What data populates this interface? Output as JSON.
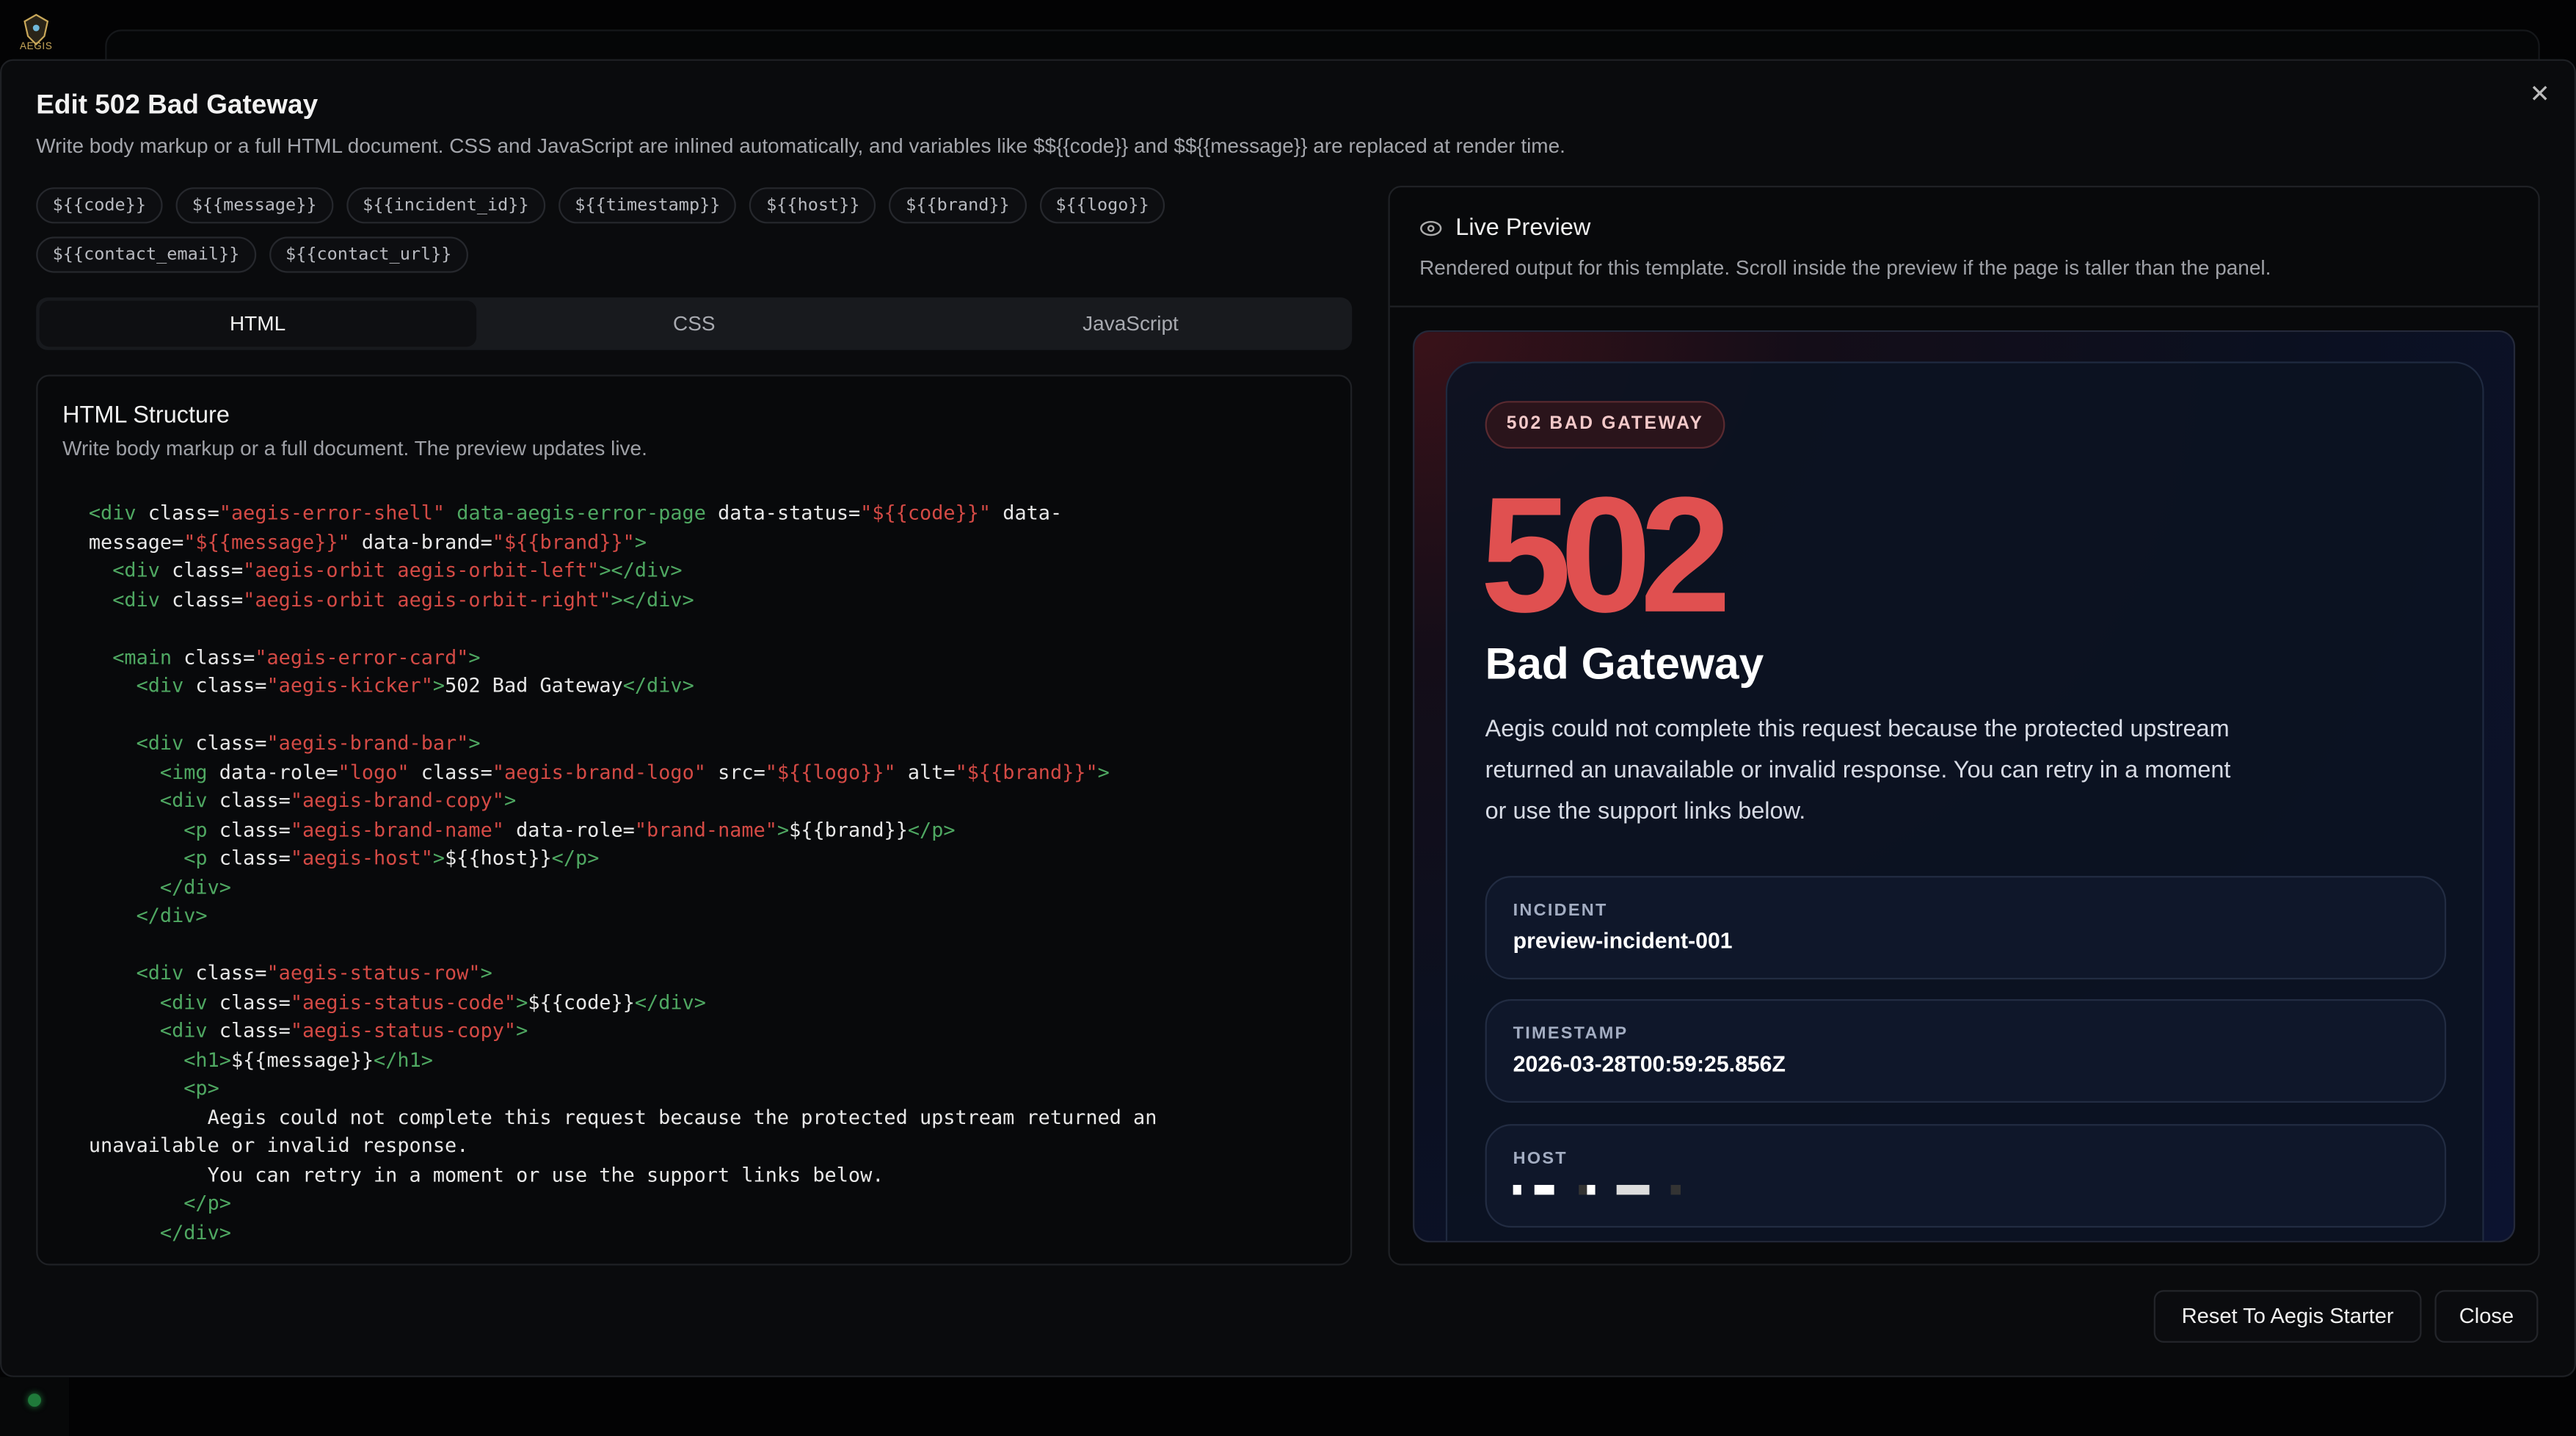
{
  "app": {
    "logo_text": "AEGIS",
    "status_color": "#1f7a3a"
  },
  "modal": {
    "title": "Edit 502 Bad Gateway",
    "subtitle": "Write body markup or a full HTML document. CSS and JavaScript are inlined automatically, and variables like $${{code}} and $${{message}} are replaced at render time.",
    "close_icon": "close-icon",
    "chips": [
      "${{code}}",
      "${{message}}",
      "${{incident_id}}",
      "${{timestamp}}",
      "${{host}}",
      "${{brand}}",
      "${{logo}}",
      "${{contact_email}}",
      "${{contact_url}}"
    ],
    "tabs": [
      {
        "label": "HTML",
        "active": true
      },
      {
        "label": "CSS",
        "active": false
      },
      {
        "label": "JavaScript",
        "active": false
      }
    ],
    "editor": {
      "title": "HTML Structure",
      "subtitle": "Write body markup or a full document. The preview updates live.",
      "lines": [
        [
          [
            "g",
            "<div"
          ],
          [
            "a",
            " class="
          ],
          [
            "s",
            "\"aegis-error-shell\""
          ],
          [
            "g",
            " data-aegis-error-page"
          ],
          [
            "a",
            " data-status="
          ],
          [
            "s",
            "\"${{code}}\""
          ],
          [
            "a",
            " data-"
          ]
        ],
        [
          [
            "a",
            "message="
          ],
          [
            "s",
            "\"${{message}}\""
          ],
          [
            "a",
            " data-brand="
          ],
          [
            "s",
            "\"${{brand}}\""
          ],
          [
            "g",
            ">"
          ]
        ],
        [
          [
            "g",
            "  <div"
          ],
          [
            "a",
            " class="
          ],
          [
            "s",
            "\"aegis-orbit aegis-orbit-left\""
          ],
          [
            "g",
            "></div>"
          ]
        ],
        [
          [
            "g",
            "  <div"
          ],
          [
            "a",
            " class="
          ],
          [
            "s",
            "\"aegis-orbit aegis-orbit-right\""
          ],
          [
            "g",
            "></div>"
          ]
        ],
        [],
        [
          [
            "g",
            "  <main"
          ],
          [
            "a",
            " class="
          ],
          [
            "s",
            "\"aegis-error-card\""
          ],
          [
            "g",
            ">"
          ]
        ],
        [
          [
            "g",
            "    <div"
          ],
          [
            "a",
            " class="
          ],
          [
            "s",
            "\"aegis-kicker\""
          ],
          [
            "g",
            ">"
          ],
          [
            "t",
            "502 Bad Gateway"
          ],
          [
            "g",
            "</div>"
          ]
        ],
        [],
        [
          [
            "g",
            "    <div"
          ],
          [
            "a",
            " class="
          ],
          [
            "s",
            "\"aegis-brand-bar\""
          ],
          [
            "g",
            ">"
          ]
        ],
        [
          [
            "g",
            "      <img"
          ],
          [
            "a",
            " data-role="
          ],
          [
            "s",
            "\"logo\""
          ],
          [
            "a",
            " class="
          ],
          [
            "s",
            "\"aegis-brand-logo\""
          ],
          [
            "a",
            " src="
          ],
          [
            "s",
            "\"${{logo}}\""
          ],
          [
            "a",
            " alt="
          ],
          [
            "s",
            "\"${{brand}}\""
          ],
          [
            "g",
            ">"
          ]
        ],
        [
          [
            "g",
            "      <div"
          ],
          [
            "a",
            " class="
          ],
          [
            "s",
            "\"aegis-brand-copy\""
          ],
          [
            "g",
            ">"
          ]
        ],
        [
          [
            "g",
            "        <p"
          ],
          [
            "a",
            " class="
          ],
          [
            "s",
            "\"aegis-brand-name\""
          ],
          [
            "a",
            " data-role="
          ],
          [
            "s",
            "\"brand-name\""
          ],
          [
            "g",
            ">"
          ],
          [
            "t",
            "${{brand}}"
          ],
          [
            "g",
            "</p>"
          ]
        ],
        [
          [
            "g",
            "        <p"
          ],
          [
            "a",
            " class="
          ],
          [
            "s",
            "\"aegis-host\""
          ],
          [
            "g",
            ">"
          ],
          [
            "t",
            "${{host}}"
          ],
          [
            "g",
            "</p>"
          ]
        ],
        [
          [
            "g",
            "      </div>"
          ]
        ],
        [
          [
            "g",
            "    </div>"
          ]
        ],
        [],
        [
          [
            "g",
            "    <div"
          ],
          [
            "a",
            " class="
          ],
          [
            "s",
            "\"aegis-status-row\""
          ],
          [
            "g",
            ">"
          ]
        ],
        [
          [
            "g",
            "      <div"
          ],
          [
            "a",
            " class="
          ],
          [
            "s",
            "\"aegis-status-code\""
          ],
          [
            "g",
            ">"
          ],
          [
            "t",
            "${{code}}"
          ],
          [
            "g",
            "</div>"
          ]
        ],
        [
          [
            "g",
            "      <div"
          ],
          [
            "a",
            " class="
          ],
          [
            "s",
            "\"aegis-status-copy\""
          ],
          [
            "g",
            ">"
          ]
        ],
        [
          [
            "g",
            "        <h1>"
          ],
          [
            "t",
            "${{message}}"
          ],
          [
            "g",
            "</h1>"
          ]
        ],
        [
          [
            "g",
            "        <p>"
          ]
        ],
        [
          [
            "t",
            "          Aegis could not complete this request because the protected upstream returned an"
          ]
        ],
        [
          [
            "t",
            "unavailable or invalid response."
          ]
        ],
        [
          [
            "t",
            "          You can retry in a moment or use the support links below."
          ]
        ],
        [
          [
            "g",
            "        </p>"
          ]
        ],
        [
          [
            "g",
            "      </div>"
          ]
        ]
      ]
    },
    "preview": {
      "title": "Live Preview",
      "subtitle": "Rendered output for this template. Scroll inside the preview if the page is taller than the panel.",
      "icon": "eye-icon",
      "badge": "502 BAD GATEWAY",
      "code": "502",
      "heading": "Bad Gateway",
      "paragraph": "Aegis could not complete this request because the protected upstream returned an unavailable or invalid response. You can retry in a moment or use the support links below.",
      "accent": "#e05050",
      "fields": [
        {
          "label": "INCIDENT",
          "value": "preview-incident-001"
        },
        {
          "label": "TIMESTAMP",
          "value": "2026-03-28T00:59:25.856Z"
        },
        {
          "label": "HOST",
          "value": ""
        }
      ]
    },
    "buttons": {
      "reset": "Reset To Aegis Starter",
      "close": "Close"
    }
  }
}
